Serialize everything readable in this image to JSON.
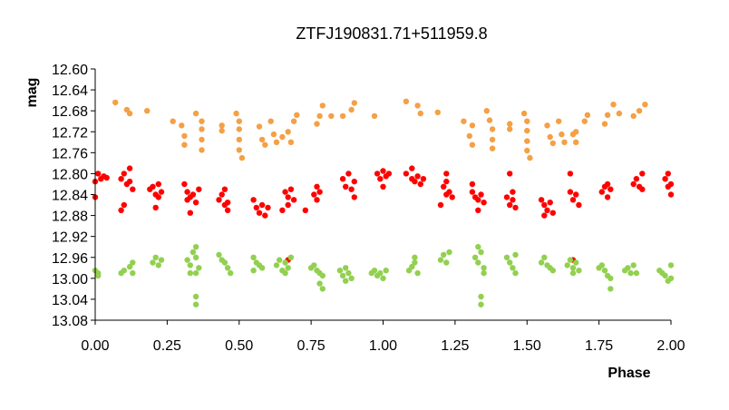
{
  "chart_data": {
    "type": "scatter",
    "title": "ZTFJ190831.71+511959.8",
    "xlabel": "Phase",
    "ylabel": "mag",
    "xlim": [
      0.0,
      2.0
    ],
    "ylim": [
      13.08,
      12.6
    ],
    "y_inverted": true,
    "grid": false,
    "x_ticks": [
      "0.00",
      "0.25",
      "0.50",
      "0.75",
      "1.00",
      "1.25",
      "1.50",
      "1.75",
      "2.00"
    ],
    "y_ticks": [
      "12.60",
      "12.64",
      "12.68",
      "12.72",
      "12.76",
      "12.80",
      "12.84",
      "12.88",
      "12.92",
      "12.96",
      "13.00",
      "13.04",
      "13.08"
    ],
    "series": [
      {
        "color": "#f4a045",
        "points": [
          [
            0.07,
            12.664
          ],
          [
            0.11,
            12.678
          ],
          [
            0.12,
            12.685
          ],
          [
            0.18,
            12.68
          ],
          [
            0.27,
            12.7
          ],
          [
            0.3,
            12.708
          ],
          [
            0.31,
            12.728
          ],
          [
            0.31,
            12.745
          ],
          [
            0.35,
            12.685
          ],
          [
            0.37,
            12.7
          ],
          [
            0.37,
            12.715
          ],
          [
            0.37,
            12.735
          ],
          [
            0.37,
            12.755
          ],
          [
            0.44,
            12.708
          ],
          [
            0.44,
            12.718
          ],
          [
            0.49,
            12.685
          ],
          [
            0.5,
            12.7
          ],
          [
            0.5,
            12.715
          ],
          [
            0.5,
            12.735
          ],
          [
            0.5,
            12.755
          ],
          [
            0.51,
            12.77
          ],
          [
            0.57,
            12.71
          ],
          [
            0.58,
            12.735
          ],
          [
            0.59,
            12.745
          ],
          [
            0.61,
            12.7
          ],
          [
            0.62,
            12.725
          ],
          [
            0.63,
            12.74
          ],
          [
            0.65,
            12.73
          ],
          [
            0.67,
            12.72
          ],
          [
            0.68,
            12.74
          ],
          [
            0.69,
            12.7
          ],
          [
            0.7,
            12.688
          ],
          [
            0.77,
            12.705
          ],
          [
            0.78,
            12.69
          ],
          [
            0.79,
            12.67
          ],
          [
            0.82,
            12.69
          ],
          [
            0.86,
            12.69
          ],
          [
            0.89,
            12.678
          ],
          [
            0.9,
            12.665
          ],
          [
            0.97,
            12.69
          ],
          [
            1.08,
            12.662
          ],
          [
            1.12,
            12.67
          ],
          [
            1.13,
            12.685
          ],
          [
            1.19,
            12.683
          ],
          [
            1.28,
            12.7
          ],
          [
            1.3,
            12.728
          ],
          [
            1.31,
            12.708
          ],
          [
            1.31,
            12.745
          ],
          [
            1.36,
            12.68
          ],
          [
            1.37,
            12.698
          ],
          [
            1.38,
            12.715
          ],
          [
            1.38,
            12.735
          ],
          [
            1.38,
            12.752
          ],
          [
            1.44,
            12.705
          ],
          [
            1.44,
            12.715
          ],
          [
            1.49,
            12.685
          ],
          [
            1.5,
            12.7
          ],
          [
            1.5,
            12.718
          ],
          [
            1.5,
            12.738
          ],
          [
            1.5,
            12.756
          ],
          [
            1.51,
            12.77
          ],
          [
            1.57,
            12.708
          ],
          [
            1.58,
            12.73
          ],
          [
            1.59,
            12.742
          ],
          [
            1.61,
            12.7
          ],
          [
            1.62,
            12.725
          ],
          [
            1.63,
            12.74
          ],
          [
            1.66,
            12.725
          ],
          [
            1.67,
            12.72
          ],
          [
            1.67,
            12.74
          ],
          [
            1.7,
            12.7
          ],
          [
            1.71,
            12.688
          ],
          [
            1.77,
            12.705
          ],
          [
            1.78,
            12.688
          ],
          [
            1.8,
            12.668
          ],
          [
            1.82,
            12.685
          ],
          [
            1.87,
            12.69
          ],
          [
            1.89,
            12.68
          ],
          [
            1.91,
            12.668
          ]
        ]
      },
      {
        "color": "#ff0000",
        "points": [
          [
            0.0,
            12.815
          ],
          [
            0.0,
            12.845
          ],
          [
            0.01,
            12.8
          ],
          [
            0.02,
            12.81
          ],
          [
            0.03,
            12.805
          ],
          [
            0.04,
            12.808
          ],
          [
            0.09,
            12.81
          ],
          [
            0.1,
            12.8
          ],
          [
            0.11,
            12.82
          ],
          [
            0.12,
            12.79
          ],
          [
            0.12,
            12.815
          ],
          [
            0.13,
            12.83
          ],
          [
            0.09,
            12.87
          ],
          [
            0.1,
            12.86
          ],
          [
            0.19,
            12.83
          ],
          [
            0.2,
            12.825
          ],
          [
            0.21,
            12.84
          ],
          [
            0.22,
            12.82
          ],
          [
            0.22,
            12.845
          ],
          [
            0.23,
            12.835
          ],
          [
            0.21,
            12.865
          ],
          [
            0.31,
            12.82
          ],
          [
            0.32,
            12.835
          ],
          [
            0.32,
            12.85
          ],
          [
            0.33,
            12.845
          ],
          [
            0.34,
            12.84
          ],
          [
            0.35,
            12.855
          ],
          [
            0.36,
            12.83
          ],
          [
            0.33,
            12.875
          ],
          [
            0.43,
            12.85
          ],
          [
            0.44,
            12.84
          ],
          [
            0.45,
            12.86
          ],
          [
            0.45,
            12.83
          ],
          [
            0.46,
            12.855
          ],
          [
            0.46,
            12.87
          ],
          [
            0.55,
            12.85
          ],
          [
            0.56,
            12.865
          ],
          [
            0.57,
            12.875
          ],
          [
            0.58,
            12.86
          ],
          [
            0.59,
            12.88
          ],
          [
            0.6,
            12.865
          ],
          [
            0.66,
            12.835
          ],
          [
            0.67,
            12.845
          ],
          [
            0.67,
            12.86
          ],
          [
            0.68,
            12.83
          ],
          [
            0.69,
            12.85
          ],
          [
            0.65,
            12.87
          ],
          [
            0.76,
            12.84
          ],
          [
            0.77,
            12.825
          ],
          [
            0.77,
            12.85
          ],
          [
            0.78,
            12.835
          ],
          [
            0.73,
            12.87
          ],
          [
            0.86,
            12.81
          ],
          [
            0.87,
            12.825
          ],
          [
            0.88,
            12.8
          ],
          [
            0.89,
            12.83
          ],
          [
            0.9,
            12.815
          ],
          [
            0.9,
            12.845
          ],
          [
            0.98,
            12.8
          ],
          [
            0.99,
            12.81
          ],
          [
            1.0,
            12.795
          ],
          [
            1.01,
            12.805
          ],
          [
            1.02,
            12.8
          ],
          [
            1.0,
            12.825
          ],
          [
            1.08,
            12.8
          ],
          [
            1.1,
            12.81
          ],
          [
            1.11,
            12.815
          ],
          [
            1.12,
            12.805
          ],
          [
            1.13,
            12.82
          ],
          [
            1.14,
            12.81
          ],
          [
            1.1,
            12.79
          ],
          [
            1.21,
            12.825
          ],
          [
            1.22,
            12.84
          ],
          [
            1.22,
            12.815
          ],
          [
            1.23,
            12.835
          ],
          [
            1.24,
            12.845
          ],
          [
            1.22,
            12.8
          ],
          [
            1.2,
            12.86
          ],
          [
            1.31,
            12.835
          ],
          [
            1.32,
            12.845
          ],
          [
            1.33,
            12.85
          ],
          [
            1.34,
            12.84
          ],
          [
            1.35,
            12.855
          ],
          [
            1.31,
            12.82
          ],
          [
            1.33,
            12.87
          ],
          [
            1.43,
            12.845
          ],
          [
            1.44,
            12.86
          ],
          [
            1.45,
            12.85
          ],
          [
            1.45,
            12.835
          ],
          [
            1.46,
            12.865
          ],
          [
            1.44,
            12.8
          ],
          [
            1.55,
            12.85
          ],
          [
            1.56,
            12.86
          ],
          [
            1.57,
            12.87
          ],
          [
            1.58,
            12.855
          ],
          [
            1.59,
            12.875
          ],
          [
            1.56,
            12.88
          ],
          [
            1.65,
            12.835
          ],
          [
            1.66,
            12.85
          ],
          [
            1.67,
            12.84
          ],
          [
            1.68,
            12.86
          ],
          [
            1.65,
            12.8
          ],
          [
            1.66,
            12.965
          ],
          [
            1.76,
            12.835
          ],
          [
            1.77,
            12.825
          ],
          [
            1.78,
            12.845
          ],
          [
            1.78,
            12.82
          ],
          [
            1.79,
            12.83
          ],
          [
            1.87,
            12.82
          ],
          [
            1.88,
            12.81
          ],
          [
            1.89,
            12.825
          ],
          [
            1.9,
            12.8
          ],
          [
            1.9,
            12.83
          ],
          [
            1.98,
            12.81
          ],
          [
            1.99,
            12.825
          ],
          [
            1.99,
            12.8
          ],
          [
            2.0,
            12.84
          ],
          [
            2.0,
            12.82
          ],
          [
            0.67,
            12.965
          ]
        ]
      },
      {
        "color": "#92d050",
        "points": [
          [
            0.0,
            12.985
          ],
          [
            0.01,
            12.99
          ],
          [
            0.01,
            12.995
          ],
          [
            0.09,
            12.99
          ],
          [
            0.1,
            12.985
          ],
          [
            0.12,
            12.978
          ],
          [
            0.13,
            12.97
          ],
          [
            0.13,
            12.99
          ],
          [
            0.2,
            12.97
          ],
          [
            0.21,
            12.96
          ],
          [
            0.22,
            12.975
          ],
          [
            0.23,
            12.965
          ],
          [
            0.32,
            12.965
          ],
          [
            0.33,
            12.975
          ],
          [
            0.34,
            12.95
          ],
          [
            0.35,
            12.96
          ],
          [
            0.35,
            12.94
          ],
          [
            0.36,
            12.98
          ],
          [
            0.33,
            12.99
          ],
          [
            0.35,
            12.99
          ],
          [
            0.35,
            13.035
          ],
          [
            0.35,
            13.05
          ],
          [
            0.43,
            12.955
          ],
          [
            0.44,
            12.965
          ],
          [
            0.45,
            12.97
          ],
          [
            0.46,
            12.98
          ],
          [
            0.47,
            12.99
          ],
          [
            0.55,
            12.96
          ],
          [
            0.56,
            12.97
          ],
          [
            0.57,
            12.975
          ],
          [
            0.58,
            12.98
          ],
          [
            0.55,
            12.985
          ],
          [
            0.63,
            12.975
          ],
          [
            0.64,
            12.965
          ],
          [
            0.65,
            12.985
          ],
          [
            0.66,
            12.97
          ],
          [
            0.67,
            12.98
          ],
          [
            0.68,
            12.96
          ],
          [
            0.66,
            12.99
          ],
          [
            0.75,
            12.98
          ],
          [
            0.76,
            12.975
          ],
          [
            0.77,
            12.985
          ],
          [
            0.78,
            12.99
          ],
          [
            0.79,
            12.995
          ],
          [
            0.78,
            13.01
          ],
          [
            0.79,
            13.02
          ],
          [
            0.85,
            12.985
          ],
          [
            0.86,
            12.995
          ],
          [
            0.87,
            12.98
          ],
          [
            0.88,
            12.99
          ],
          [
            0.89,
            13.0
          ],
          [
            0.87,
            13.005
          ],
          [
            0.96,
            12.99
          ],
          [
            0.97,
            12.985
          ],
          [
            0.98,
            12.995
          ],
          [
            0.99,
            12.99
          ],
          [
            1.0,
            13.0
          ],
          [
            1.01,
            12.985
          ],
          [
            1.09,
            12.985
          ],
          [
            1.1,
            12.978
          ],
          [
            1.11,
            12.97
          ],
          [
            1.12,
            12.99
          ],
          [
            1.11,
            12.96
          ],
          [
            1.2,
            12.965
          ],
          [
            1.21,
            12.955
          ],
          [
            1.22,
            12.97
          ],
          [
            1.23,
            12.95
          ],
          [
            1.32,
            12.96
          ],
          [
            1.33,
            12.97
          ],
          [
            1.33,
            12.94
          ],
          [
            1.34,
            12.95
          ],
          [
            1.35,
            12.98
          ],
          [
            1.35,
            12.99
          ],
          [
            1.34,
            13.035
          ],
          [
            1.34,
            13.05
          ],
          [
            1.43,
            12.96
          ],
          [
            1.44,
            12.97
          ],
          [
            1.45,
            12.98
          ],
          [
            1.46,
            12.99
          ],
          [
            1.46,
            12.955
          ],
          [
            1.55,
            12.97
          ],
          [
            1.56,
            12.96
          ],
          [
            1.57,
            12.975
          ],
          [
            1.58,
            12.98
          ],
          [
            1.59,
            12.985
          ],
          [
            1.64,
            12.975
          ],
          [
            1.65,
            12.965
          ],
          [
            1.66,
            12.98
          ],
          [
            1.67,
            12.97
          ],
          [
            1.68,
            12.985
          ],
          [
            1.66,
            12.99
          ],
          [
            1.75,
            12.98
          ],
          [
            1.76,
            12.975
          ],
          [
            1.77,
            12.985
          ],
          [
            1.78,
            12.995
          ],
          [
            1.79,
            13.0
          ],
          [
            1.79,
            13.02
          ],
          [
            1.84,
            12.985
          ],
          [
            1.85,
            12.98
          ],
          [
            1.86,
            12.99
          ],
          [
            1.87,
            12.975
          ],
          [
            1.88,
            12.99
          ],
          [
            1.96,
            12.985
          ],
          [
            1.97,
            12.99
          ],
          [
            1.98,
            12.995
          ],
          [
            1.99,
            13.005
          ],
          [
            2.0,
            12.975
          ],
          [
            2.0,
            13.0
          ]
        ]
      }
    ]
  }
}
